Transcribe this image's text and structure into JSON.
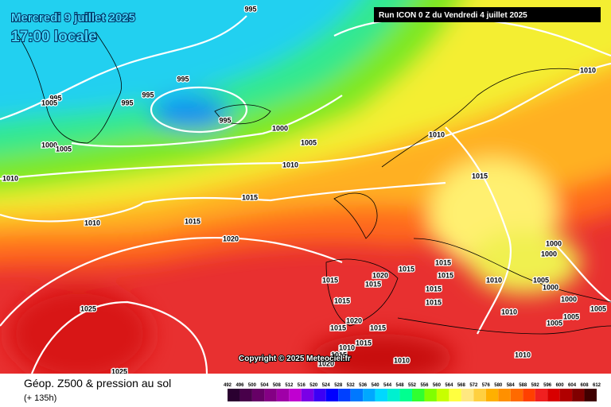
{
  "header": {
    "date": "Mercredi 9 juillet 2025",
    "time": "17:00 locale",
    "run": "Run ICON 0 Z du Vendredi 4 juillet 2025"
  },
  "map": {
    "isobar_labels": [
      995,
      995,
      995,
      995,
      995,
      995,
      1005,
      1000,
      1005,
      1000,
      1005,
      1010,
      1010,
      1010,
      1015,
      1015,
      1015,
      1010,
      1020,
      1010,
      1000,
      1000,
      1005,
      1000,
      1010,
      1015,
      1015,
      1015,
      1020,
      1015,
      1015,
      1015,
      1015,
      1015,
      1000,
      1010,
      1005,
      1005,
      1005,
      1025,
      1020,
      1015,
      1015,
      1015,
      1010,
      1015,
      1020,
      1010,
      1010,
      1025
    ],
    "copyright": "Copyright © 2025 Meteociel.fr"
  },
  "legend": {
    "title": "Géop. Z500 & pression au sol",
    "lead": "(+ 135h)"
  },
  "colorbar": {
    "labels": [
      492,
      496,
      500,
      504,
      508,
      512,
      516,
      520,
      524,
      528,
      532,
      536,
      540,
      544,
      548,
      552,
      556,
      560,
      564,
      568,
      572,
      576,
      580,
      584,
      588,
      592,
      596,
      600,
      604,
      608,
      612
    ],
    "colors": [
      "#2a0030",
      "#48004a",
      "#660066",
      "#840084",
      "#a000a8",
      "#c000d0",
      "#7a00e6",
      "#3c00f5",
      "#0000ff",
      "#0040ff",
      "#0078ff",
      "#00a8ff",
      "#00d8ff",
      "#00f0d0",
      "#00ff90",
      "#30ff30",
      "#80ff00",
      "#c8ff00",
      "#ffff40",
      "#ffe880",
      "#ffd040",
      "#ffb000",
      "#ff9000",
      "#ff6a00",
      "#ff4000",
      "#f02020",
      "#d80000",
      "#b00000",
      "#800000",
      "#400000"
    ]
  }
}
